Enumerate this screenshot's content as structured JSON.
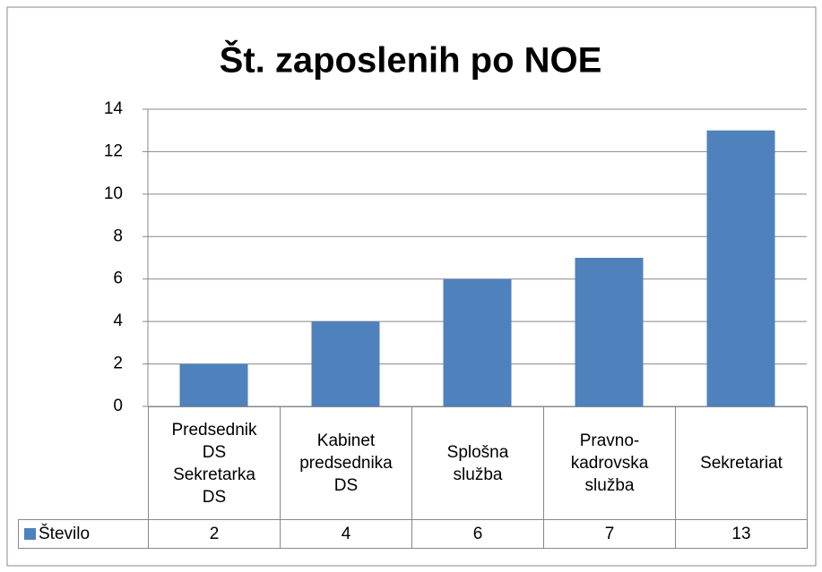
{
  "chart_data": {
    "type": "bar",
    "title": "Št. zaposlenih po NOE",
    "categories": [
      "Predsednik DS Sekretarka DS",
      "Kabinet predsednika DS",
      "Splošna služba",
      "Pravno-kadrovska služba",
      "Sekretariat"
    ],
    "series": [
      {
        "name": "Število",
        "color": "#4f81bd",
        "values": [
          2,
          4,
          6,
          7,
          13
        ]
      }
    ],
    "ylim": [
      0,
      14
    ],
    "yticks": [
      0,
      2,
      4,
      6,
      8,
      10,
      12,
      14
    ],
    "grid": true
  }
}
